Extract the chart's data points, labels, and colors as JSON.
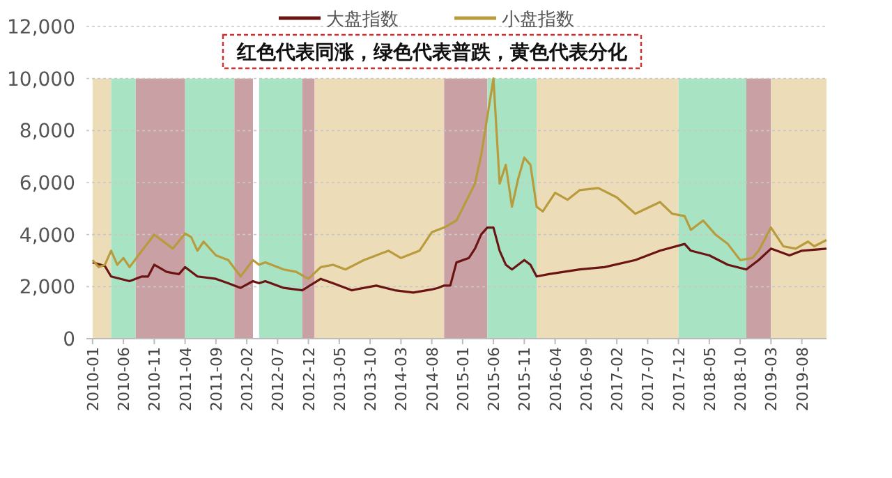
{
  "chart_data": {
    "type": "line",
    "legend": "top",
    "grid": "y",
    "annotations": [
      "红色代表同涨，绿色代表普跌，黄色代表分化"
    ],
    "xlim": [
      "2009-12",
      "2019-12"
    ],
    "xticks": [
      "2010-01",
      "2010-06",
      "2010-11",
      "2011-04",
      "2011-09",
      "2012-02",
      "2012-07",
      "2012-12",
      "2013-05",
      "2013-10",
      "2014-03",
      "2014-08",
      "2015-01",
      "2015-06",
      "2015-11",
      "2016-04",
      "2016-09",
      "2017-02",
      "2017-07",
      "2017-12",
      "2018-05",
      "2018-10",
      "2019-03",
      "2019-08"
    ],
    "ylim": [
      0,
      12000
    ],
    "yticks": [
      0,
      {
        "value": 2000,
        "label": "2,000"
      },
      {
        "value": 4000,
        "label": "4,000"
      },
      {
        "value": 6000,
        "label": "6,000"
      },
      {
        "value": 8000,
        "label": "8,000"
      },
      {
        "value": 10000,
        "label": "10,000"
      },
      {
        "value": 12000,
        "label": "12,000"
      }
    ],
    "bands": [
      {
        "axis": "x",
        "from": "2010-01",
        "to": "2010-04",
        "color": "#ecdcb8"
      },
      {
        "axis": "x",
        "from": "2010-04",
        "to": "2010-08",
        "color": "#a8e4c4"
      },
      {
        "axis": "x",
        "from": "2010-08",
        "to": "2011-04",
        "color": "#c9a0a4"
      },
      {
        "axis": "x",
        "from": "2011-04",
        "to": "2011-12",
        "color": "#a8e4c4"
      },
      {
        "axis": "x",
        "from": "2011-12",
        "to": "2012-03",
        "color": "#c9a0a4"
      },
      {
        "axis": "x",
        "from": "2012-04",
        "to": "2012-11",
        "color": "#a8e4c4"
      },
      {
        "axis": "x",
        "from": "2012-11",
        "to": "2013-01",
        "color": "#c9a0a4"
      },
      {
        "axis": "x",
        "from": "2013-01",
        "to": "2014-10",
        "color": "#ecdcb8"
      },
      {
        "axis": "x",
        "from": "2014-10",
        "to": "2015-05",
        "color": "#c9a0a4"
      },
      {
        "axis": "x",
        "from": "2015-05",
        "to": "2016-01",
        "color": "#a8e4c4"
      },
      {
        "axis": "x",
        "from": "2016-01",
        "to": "2017-12",
        "color": "#ecdcb8"
      },
      {
        "axis": "x",
        "from": "2017-12",
        "to": "2018-11",
        "color": "#a8e4c4"
      },
      {
        "axis": "x",
        "from": "2018-11",
        "to": "2019-03",
        "color": "#c9a0a4"
      },
      {
        "axis": "x",
        "from": "2019-03",
        "to": "2019-12",
        "color": "#ecdcb8"
      }
    ],
    "series": [
      {
        "name": "大盘指数",
        "color": "#6b1414",
        "x": [
          "2010-01",
          "2010-03",
          "2010-04",
          "2010-07",
          "2010-09",
          "2010-10",
          "2010-11",
          "2011-01",
          "2011-03",
          "2011-04",
          "2011-06",
          "2011-09",
          "2011-11",
          "2012-01",
          "2012-03",
          "2012-04",
          "2012-05",
          "2012-08",
          "2012-11",
          "2013-02",
          "2013-04",
          "2013-07",
          "2013-11",
          "2014-02",
          "2014-05",
          "2014-08",
          "2014-09",
          "2014-10",
          "2014-11",
          "2014-12",
          "2015-02",
          "2015-03",
          "2015-04",
          "2015-05",
          "2015-06",
          "2015-07",
          "2015-08",
          "2015-09",
          "2015-11",
          "2015-12",
          "2016-01",
          "2016-03",
          "2016-08",
          "2016-12",
          "2017-05",
          "2017-09",
          "2018-01",
          "2018-02",
          "2018-05",
          "2018-08",
          "2018-11",
          "2019-01",
          "2019-03",
          "2019-06",
          "2019-08",
          "2019-12"
        ],
        "values": [
          2930,
          2790,
          2390,
          2210,
          2390,
          2390,
          2840,
          2570,
          2480,
          2750,
          2390,
          2300,
          2130,
          1950,
          2210,
          2130,
          2210,
          1950,
          1860,
          2300,
          2130,
          1860,
          2040,
          1860,
          1770,
          1890,
          1950,
          2040,
          2040,
          2930,
          3100,
          3460,
          4000,
          4270,
          4270,
          3380,
          2840,
          2660,
          3020,
          2840,
          2390,
          2480,
          2660,
          2750,
          3020,
          3380,
          3640,
          3380,
          3200,
          2840,
          2660,
          3020,
          3460,
          3200,
          3380,
          3460
        ]
      },
      {
        "name": "小盘指数",
        "color": "#b89b3c",
        "x": [
          "2010-01",
          "2010-02",
          "2010-03",
          "2010-04",
          "2010-05",
          "2010-06",
          "2010-07",
          "2010-09",
          "2010-11",
          "2010-12",
          "2011-02",
          "2011-04",
          "2011-05",
          "2011-06",
          "2011-07",
          "2011-09",
          "2011-11",
          "2012-01",
          "2012-03",
          "2012-04",
          "2012-05",
          "2012-08",
          "2012-10",
          "2012-12",
          "2013-02",
          "2013-04",
          "2013-06",
          "2013-09",
          "2013-11",
          "2014-01",
          "2014-03",
          "2014-06",
          "2014-08",
          "2014-10",
          "2014-12",
          "2015-03",
          "2015-04",
          "2015-06",
          "2015-07",
          "2015-08",
          "2015-09",
          "2015-10",
          "2015-11",
          "2015-12",
          "2016-01",
          "2016-02",
          "2016-04",
          "2016-06",
          "2016-08",
          "2016-11",
          "2017-02",
          "2017-05",
          "2017-09",
          "2017-11",
          "2018-01",
          "2018-02",
          "2018-04",
          "2018-06",
          "2018-08",
          "2018-10",
          "2018-12",
          "2019-01",
          "2019-03",
          "2019-05",
          "2019-07",
          "2019-09",
          "2019-10",
          "2019-12"
        ],
        "values": [
          3020,
          2750,
          2840,
          3380,
          2840,
          3100,
          2750,
          3380,
          4000,
          3820,
          3460,
          4040,
          3900,
          3380,
          3730,
          3200,
          3020,
          2390,
          3020,
          2840,
          2930,
          2660,
          2570,
          2300,
          2750,
          2840,
          2660,
          3020,
          3200,
          3380,
          3100,
          3380,
          4090,
          4270,
          4540,
          5960,
          7040,
          10000,
          5960,
          6680,
          5070,
          6140,
          6960,
          6680,
          5070,
          4890,
          5610,
          5340,
          5710,
          5790,
          5430,
          4800,
          5250,
          4800,
          4710,
          4180,
          4540,
          4000,
          3640,
          3020,
          3100,
          3380,
          4270,
          3550,
          3460,
          3730,
          3550,
          3790
        ]
      }
    ]
  }
}
